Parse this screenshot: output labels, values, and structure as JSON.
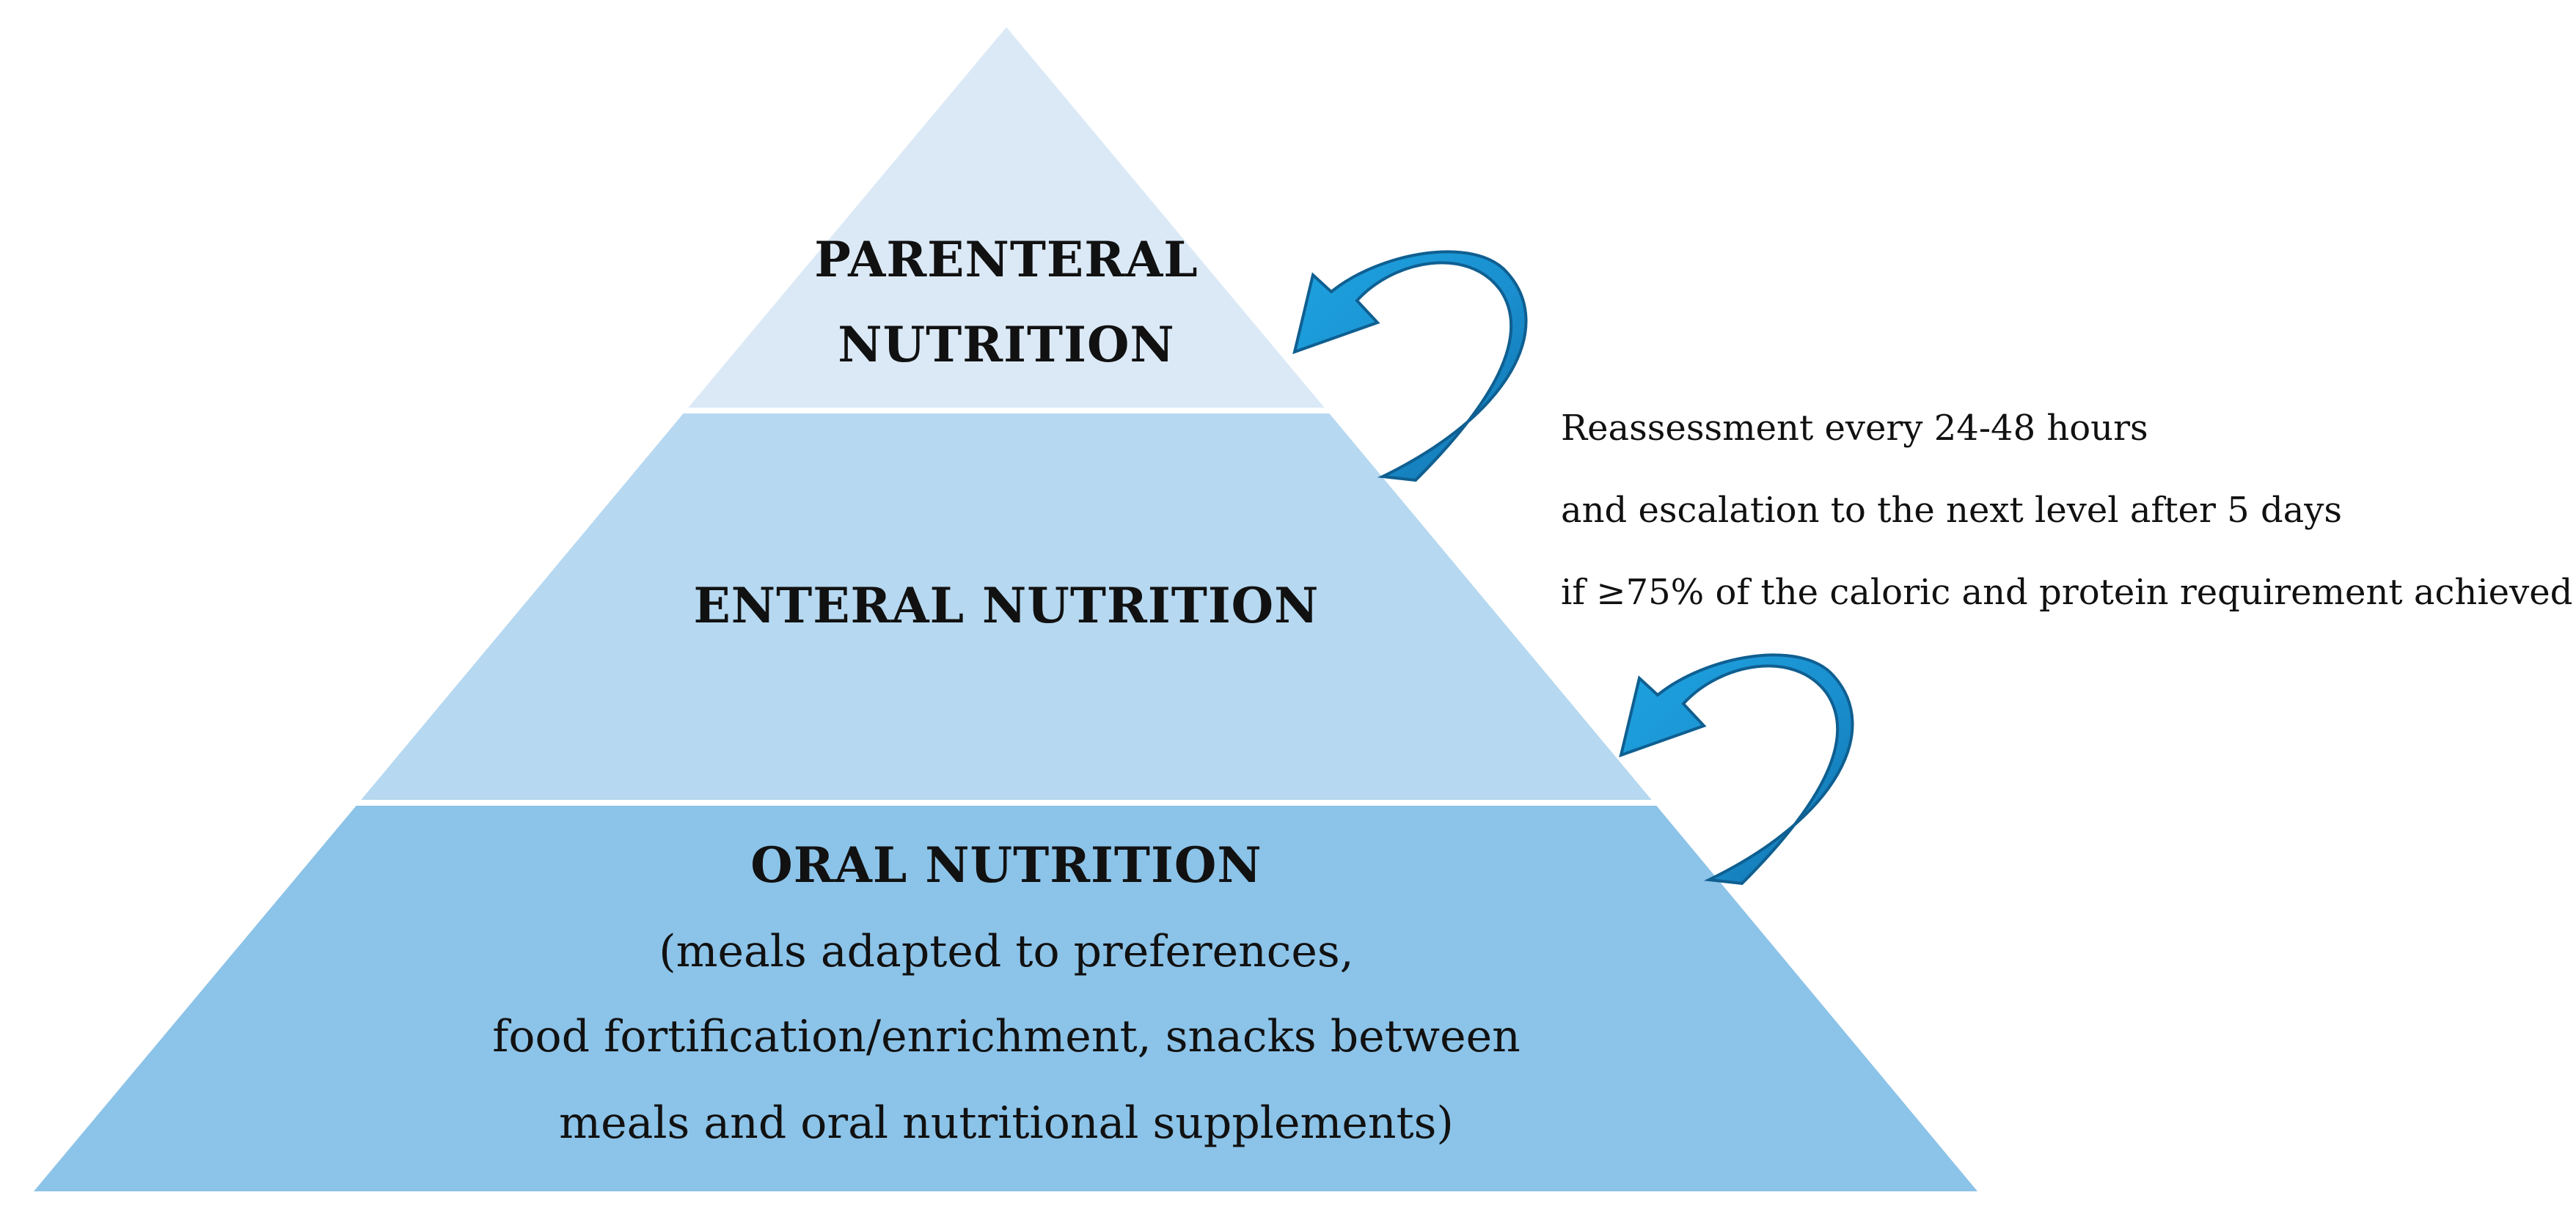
{
  "levels": {
    "parenteral": {
      "line1": "PARENTERAL",
      "line2": "NUTRITION",
      "fill": "#dbe9f6"
    },
    "enteral": {
      "title": "ENTERAL NUTRITION",
      "fill": "#b6d8f0"
    },
    "oral": {
      "title": "ORAL NUTRITION",
      "detail_1": "(meals adapted to preferences,",
      "detail_2": "food fortification/enrichment, snacks between",
      "detail_3": "meals and oral nutritional supplements)",
      "fill": "#8cc3e8"
    }
  },
  "escalation_note": {
    "line1": "Reassessment every 24-48 hours",
    "line2": "and escalation to the next level after 5 days",
    "line3": "if ≥75% of the caloric and protein requirement achieved"
  },
  "arrow_colors": {
    "light": "#1a9ad9",
    "dark": "#1273ad"
  }
}
